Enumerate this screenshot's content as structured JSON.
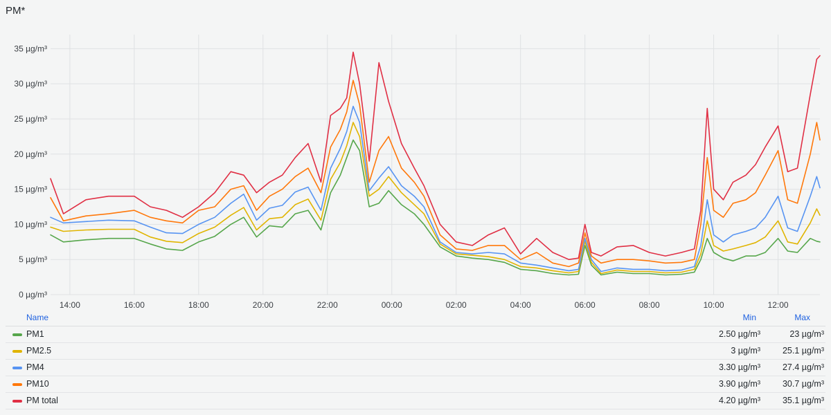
{
  "panel": {
    "title": "PM*"
  },
  "chart_data": {
    "type": "line",
    "title": "PM*",
    "unit": "µg/m³",
    "ylim": [
      0,
      37
    ],
    "yticks": [
      "0 µg/m³",
      "5 µg/m³",
      "10 µg/m³",
      "15 µg/m³",
      "20 µg/m³",
      "25 µg/m³",
      "30 µg/m³",
      "35 µg/m³"
    ],
    "ytick_values": [
      0,
      5,
      10,
      15,
      20,
      25,
      30,
      35
    ],
    "xlim_hours": [
      13.4,
      37.3
    ],
    "xticks": [
      "14:00",
      "16:00",
      "18:00",
      "20:00",
      "22:00",
      "00:00",
      "02:00",
      "04:00",
      "06:00",
      "08:00",
      "10:00",
      "12:00"
    ],
    "xtick_hours": [
      14,
      16,
      18,
      20,
      22,
      24,
      26,
      28,
      30,
      32,
      34,
      36
    ],
    "grid": true,
    "legend_placement": "bottom",
    "x_hours": [
      13.4,
      13.8,
      14.5,
      15.2,
      16.0,
      16.5,
      17.0,
      17.5,
      18.0,
      18.5,
      19.0,
      19.4,
      19.8,
      20.2,
      20.6,
      21.0,
      21.4,
      21.8,
      22.1,
      22.4,
      22.6,
      22.8,
      23.0,
      23.3,
      23.6,
      23.9,
      24.3,
      24.7,
      25.0,
      25.5,
      26.0,
      26.5,
      27.0,
      27.5,
      28.0,
      28.5,
      29.0,
      29.5,
      29.8,
      30.0,
      30.2,
      30.5,
      31.0,
      31.5,
      32.0,
      32.5,
      33.0,
      33.4,
      33.6,
      33.8,
      34.0,
      34.3,
      34.6,
      35.0,
      35.3,
      35.6,
      36.0,
      36.3,
      36.6,
      37.0,
      37.2,
      37.3
    ],
    "series": [
      {
        "name": "PM1",
        "color": "#56a64b",
        "values": [
          8.5,
          7.5,
          7.8,
          8.0,
          8.0,
          7.2,
          6.5,
          6.3,
          7.5,
          8.3,
          10.0,
          11.0,
          8.2,
          9.8,
          9.6,
          11.5,
          12.0,
          9.2,
          14.5,
          17.0,
          19.5,
          22.0,
          20.5,
          12.5,
          13.0,
          14.8,
          12.8,
          11.5,
          10.0,
          6.8,
          5.5,
          5.2,
          5.0,
          4.6,
          3.6,
          3.4,
          3.0,
          2.8,
          2.9,
          7.0,
          4.2,
          2.8,
          3.2,
          3.0,
          3.0,
          2.8,
          2.9,
          3.2,
          5.0,
          8.0,
          6.0,
          5.2,
          4.8,
          5.5,
          5.5,
          6.0,
          8.0,
          6.2,
          6.0,
          8.0,
          7.6,
          7.5
        ]
      },
      {
        "name": "PM2.5",
        "color": "#e0b400",
        "values": [
          9.6,
          9.0,
          9.2,
          9.3,
          9.3,
          8.2,
          7.6,
          7.4,
          8.7,
          9.6,
          11.3,
          12.4,
          9.2,
          10.8,
          11.0,
          12.8,
          13.6,
          10.6,
          16.4,
          18.8,
          21.2,
          24.5,
          22.5,
          14.0,
          15.0,
          16.8,
          14.5,
          12.8,
          11.5,
          7.2,
          5.8,
          5.6,
          5.4,
          5.0,
          4.0,
          3.8,
          3.4,
          3.1,
          3.3,
          7.6,
          4.6,
          3.0,
          3.5,
          3.3,
          3.3,
          3.1,
          3.2,
          3.6,
          5.8,
          10.5,
          7.0,
          6.2,
          6.5,
          7.0,
          7.4,
          8.2,
          10.5,
          7.5,
          7.2,
          10.2,
          12.2,
          11.3
        ]
      },
      {
        "name": "PM4",
        "color": "#5794f2",
        "values": [
          11.0,
          10.2,
          10.4,
          10.6,
          10.5,
          9.6,
          8.8,
          8.7,
          10.0,
          11.0,
          13.0,
          14.3,
          10.6,
          12.3,
          12.7,
          14.6,
          15.3,
          12.0,
          18.0,
          20.8,
          23.2,
          26.8,
          24.5,
          14.8,
          16.6,
          18.2,
          15.5,
          14.0,
          12.5,
          7.5,
          6.0,
          5.8,
          6.0,
          5.8,
          4.5,
          4.2,
          3.8,
          3.4,
          3.6,
          8.0,
          5.0,
          3.3,
          3.8,
          3.6,
          3.6,
          3.4,
          3.5,
          4.0,
          7.0,
          13.5,
          8.5,
          7.5,
          8.5,
          9.0,
          9.5,
          11.0,
          14.0,
          9.5,
          9.0,
          14.0,
          16.8,
          15.2
        ]
      },
      {
        "name": "PM10",
        "color": "#ff780a",
        "values": [
          13.8,
          10.5,
          11.2,
          11.5,
          12.0,
          11.0,
          10.5,
          10.2,
          12.0,
          12.5,
          15.0,
          15.5,
          12.0,
          14.0,
          15.0,
          16.8,
          18.0,
          14.5,
          21.0,
          23.5,
          26.0,
          30.5,
          27.0,
          16.0,
          20.5,
          22.5,
          18.0,
          16.0,
          14.0,
          8.5,
          6.5,
          6.3,
          7.0,
          7.0,
          5.0,
          6.0,
          4.5,
          4.0,
          4.5,
          8.8,
          5.5,
          4.5,
          5.0,
          5.0,
          4.8,
          4.5,
          4.6,
          5.0,
          10.0,
          19.5,
          12.0,
          11.0,
          13.0,
          13.5,
          14.5,
          17.0,
          20.5,
          13.5,
          13.0,
          20.0,
          24.5,
          22.0
        ]
      },
      {
        "name": "PM total",
        "color": "#e02f44",
        "values": [
          16.5,
          11.5,
          13.5,
          14.0,
          14.0,
          12.5,
          12.0,
          11.0,
          12.5,
          14.5,
          17.5,
          17.0,
          14.5,
          16.0,
          17.0,
          19.5,
          21.5,
          16.0,
          25.5,
          26.5,
          28.0,
          34.5,
          30.0,
          19.0,
          33.0,
          27.5,
          21.5,
          18.0,
          15.5,
          10.0,
          7.5,
          7.0,
          8.5,
          9.5,
          5.8,
          8.0,
          6.0,
          5.0,
          5.2,
          10.0,
          6.0,
          5.5,
          6.8,
          7.0,
          6.0,
          5.5,
          6.0,
          6.5,
          12.0,
          26.5,
          15.0,
          13.5,
          16.0,
          17.0,
          18.5,
          21.0,
          24.0,
          17.5,
          18.0,
          28.5,
          33.5,
          34.0
        ]
      }
    ]
  },
  "legend": {
    "header": {
      "name": "Name",
      "min": "Min",
      "max": "Max"
    },
    "rows": [
      {
        "name": "PM1",
        "color": "#56a64b",
        "min": "2.50 µg/m³",
        "max": "23 µg/m³"
      },
      {
        "name": "PM2.5",
        "color": "#e0b400",
        "min": "3 µg/m³",
        "max": "25.1 µg/m³"
      },
      {
        "name": "PM4",
        "color": "#5794f2",
        "min": "3.30 µg/m³",
        "max": "27.4 µg/m³"
      },
      {
        "name": "PM10",
        "color": "#ff780a",
        "min": "3.90 µg/m³",
        "max": "30.7 µg/m³"
      },
      {
        "name": "PM total",
        "color": "#e02f44",
        "min": "4.20 µg/m³",
        "max": "35.1 µg/m³"
      }
    ]
  }
}
